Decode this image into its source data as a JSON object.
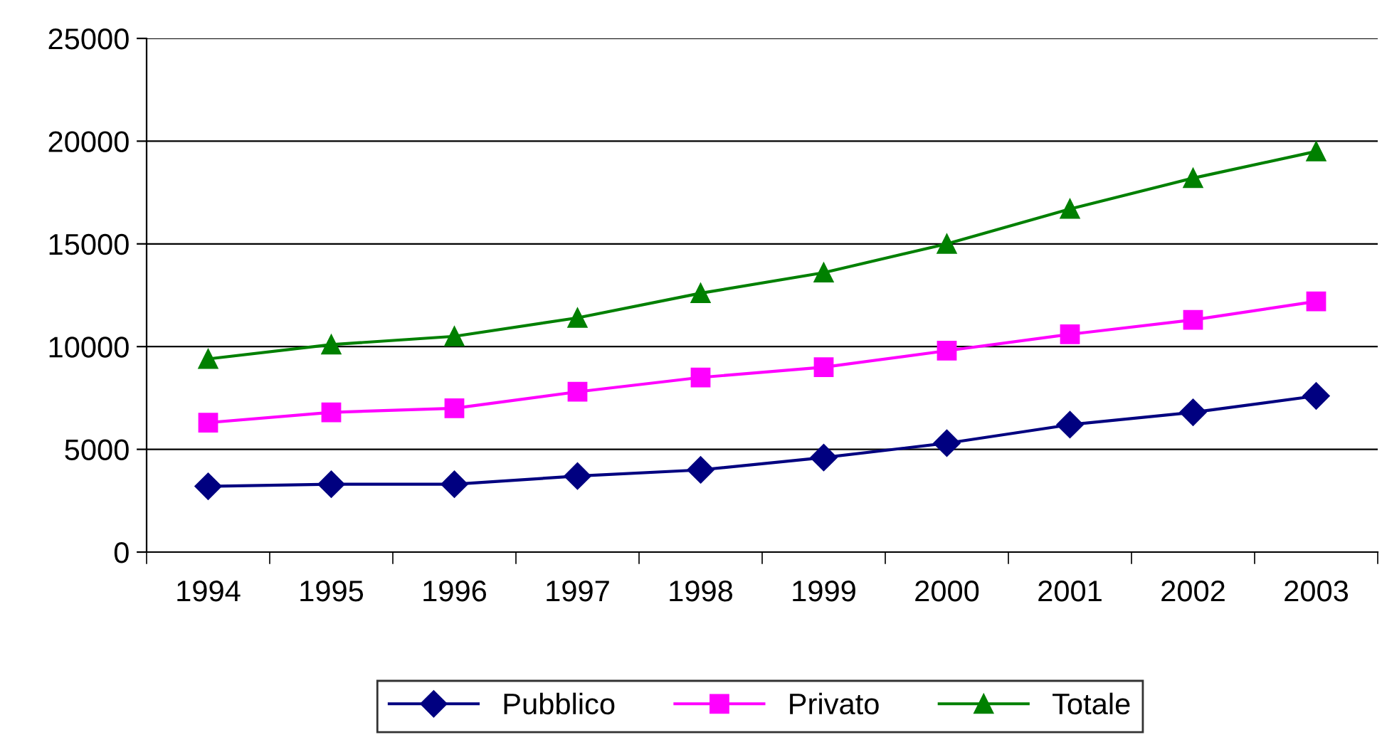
{
  "chart_data": {
    "type": "line",
    "categories": [
      "1994",
      "1995",
      "1996",
      "1997",
      "1998",
      "1999",
      "2000",
      "2001",
      "2002",
      "2003"
    ],
    "series": [
      {
        "name": "Pubblico",
        "color": "#000080",
        "marker": "diamond",
        "values": [
          3200,
          3300,
          3300,
          3700,
          4000,
          4600,
          5300,
          6200,
          6800,
          7600
        ]
      },
      {
        "name": "Privato",
        "color": "#ff00ff",
        "marker": "square",
        "values": [
          6300,
          6800,
          7000,
          7800,
          8500,
          9000,
          9800,
          10600,
          11300,
          12200
        ]
      },
      {
        "name": "Totale",
        "color": "#008000",
        "marker": "triangle",
        "values": [
          9400,
          10100,
          10500,
          11400,
          12600,
          13600,
          15000,
          16700,
          18200,
          19500
        ]
      }
    ],
    "ylim": [
      0,
      25000
    ],
    "yticks": [
      0,
      5000,
      10000,
      15000,
      20000,
      25000
    ],
    "grid": "y",
    "legend": "bottom",
    "line_style": "solid"
  }
}
